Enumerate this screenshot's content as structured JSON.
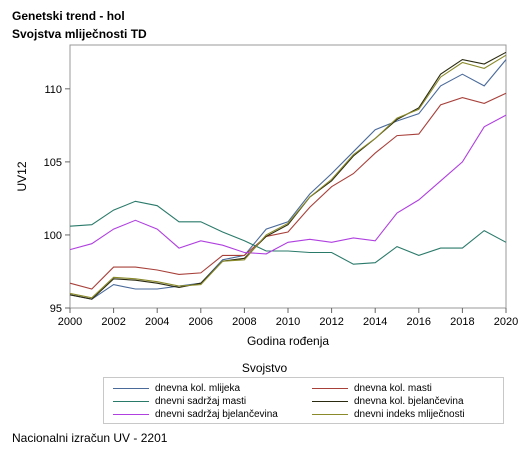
{
  "header": {
    "title": "Genetski trend - hol",
    "subtitle": "Svojstva mliječnosti TD"
  },
  "footnote": "Nacionalni izračun UV - 2201",
  "chart_data": {
    "type": "line",
    "xlabel": "Godina rođenja",
    "ylabel": "UV12",
    "xlim": [
      2000,
      2020
    ],
    "ylim": [
      95,
      113
    ],
    "x_ticks": [
      "2000",
      "2002",
      "2004",
      "2006",
      "2008",
      "2010",
      "2012",
      "2014",
      "2016",
      "2018",
      "2020"
    ],
    "y_ticks": [
      "95",
      "100",
      "105",
      "110"
    ],
    "legend_title": "Svojstvo",
    "legend_position": "bottom",
    "grid": false,
    "x": [
      2000,
      2001,
      2002,
      2003,
      2004,
      2005,
      2006,
      2007,
      2008,
      2009,
      2010,
      2011,
      2012,
      2013,
      2014,
      2015,
      2016,
      2017,
      2018,
      2019,
      2020
    ],
    "series": [
      {
        "name": "dnevna kol. mlijeka",
        "color": "#4a6a9a",
        "values": [
          95.9,
          95.6,
          96.6,
          96.3,
          96.3,
          96.5,
          96.7,
          98.3,
          98.6,
          100.4,
          100.9,
          102.8,
          104.2,
          105.7,
          107.2,
          107.8,
          108.3,
          110.2,
          111.0,
          110.2,
          112.0
        ]
      },
      {
        "name": "dnevna kol. masti",
        "color": "#a8403a",
        "values": [
          96.7,
          96.3,
          97.8,
          97.8,
          97.6,
          97.3,
          97.4,
          98.6,
          98.6,
          99.9,
          100.2,
          101.9,
          103.3,
          104.2,
          105.6,
          106.8,
          106.9,
          108.9,
          109.4,
          109.0,
          109.7
        ]
      },
      {
        "name": "dnevni sadržaj masti",
        "color": "#2a7a6a",
        "values": [
          100.6,
          100.7,
          101.7,
          102.3,
          102.0,
          100.9,
          100.9,
          100.2,
          99.6,
          98.9,
          98.9,
          98.8,
          98.8,
          98.0,
          98.1,
          99.2,
          98.6,
          99.1,
          99.1,
          100.3,
          99.5
        ]
      },
      {
        "name": "dnevna kol. bjelančevina",
        "color": "#2a2a10",
        "values": [
          95.9,
          95.6,
          97.0,
          96.9,
          96.7,
          96.4,
          96.7,
          98.2,
          98.4,
          99.9,
          100.7,
          102.6,
          103.7,
          105.4,
          106.6,
          107.9,
          108.7,
          111.0,
          112.0,
          111.7,
          112.5
        ]
      },
      {
        "name": "dnevni sadržaj bjelančevina",
        "color": "#b040e0",
        "values": [
          99.0,
          99.4,
          100.4,
          101.0,
          100.4,
          99.1,
          99.6,
          99.3,
          98.8,
          98.7,
          99.5,
          99.7,
          99.5,
          99.8,
          99.6,
          101.5,
          102.4,
          103.7,
          105.0,
          107.4,
          108.2
        ]
      },
      {
        "name": "dnevni indeks mliječnosti",
        "color": "#8a8a2a",
        "values": [
          96.0,
          95.7,
          97.1,
          97.0,
          96.8,
          96.5,
          96.6,
          98.2,
          98.3,
          100.0,
          100.8,
          102.6,
          103.8,
          105.5,
          106.6,
          108.0,
          108.6,
          110.8,
          111.8,
          111.4,
          112.3
        ]
      }
    ]
  }
}
